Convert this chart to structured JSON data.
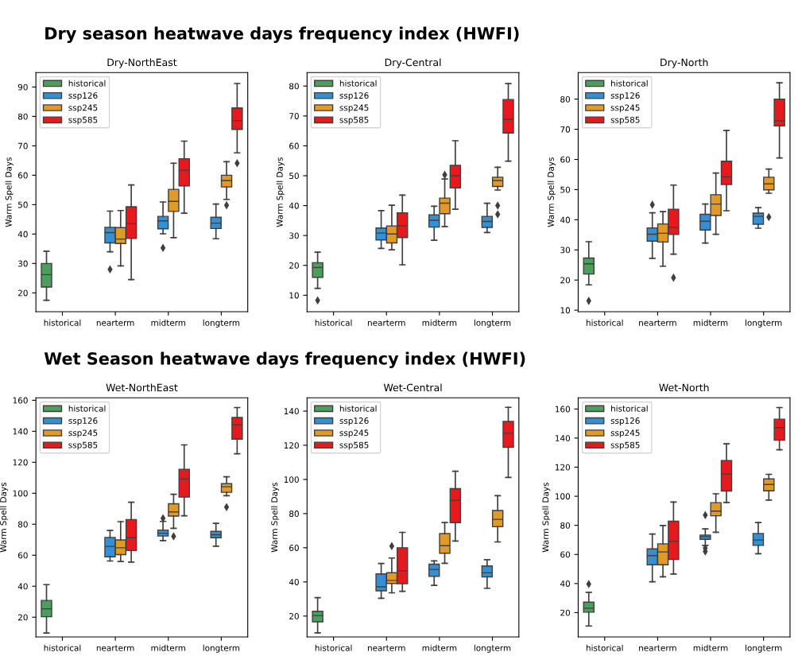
{
  "chart_data": [
    {
      "type": "box",
      "title": "Dry-NorthEast",
      "ylabel": "Warm Spell Days",
      "annotations": [
        "Dry season heatwave days frequency index (HWFI)"
      ],
      "categories": [
        "historical",
        "nearterm",
        "midterm",
        "longterm"
      ],
      "ylim": [
        13.6,
        94.9
      ],
      "yticks": [
        20,
        30,
        40,
        50,
        60,
        70,
        80,
        90
      ],
      "legend": "top left",
      "marker": "diamond",
      "series": [
        {
          "name": "historical",
          "color": "#4c9f5a",
          "boxes": [
            {
              "low": 17.5,
              "q1": 22,
              "median": 26.2,
              "q3": 30,
              "high": 34.2
            },
            null,
            null,
            null
          ]
        },
        {
          "name": "ssp126",
          "color": "#3490d4",
          "boxes": [
            null,
            {
              "low": 34,
              "q1": 37,
              "median": 40.5,
              "q3": 42.3,
              "high": 47.8,
              "outliers": [
                28
              ]
            },
            {
              "low": 40.1,
              "q1": 41.8,
              "median": 44.5,
              "q3": 46,
              "high": 50.9,
              "outliers": [
                35.3
              ]
            },
            {
              "low": 38.4,
              "q1": 41.9,
              "median": 43.7,
              "q3": 45.7,
              "high": 50.2
            }
          ]
        },
        {
          "name": "ssp245",
          "color": "#e09a25",
          "boxes": [
            null,
            {
              "low": 29.2,
              "q1": 36.8,
              "median": 38.3,
              "q3": 42.2,
              "high": 48
            },
            {
              "low": 38.8,
              "q1": 47.7,
              "median": 51.1,
              "q3": 55.2,
              "high": 64.1
            },
            {
              "low": 51.8,
              "q1": 56,
              "median": 58.2,
              "q3": 60,
              "high": 64.6,
              "outliers": [
                49.8
              ]
            }
          ]
        },
        {
          "name": "ssp585",
          "color": "#e8191c",
          "boxes": [
            null,
            {
              "low": 24.5,
              "q1": 38.5,
              "median": 43.5,
              "q3": 49.3,
              "high": 56.7
            },
            {
              "low": 47.1,
              "q1": 56.4,
              "median": 61.7,
              "q3": 65.6,
              "high": 71.6
            },
            {
              "low": 67.6,
              "q1": 75.6,
              "median": 78.6,
              "q3": 82.9,
              "high": 91.2,
              "outliers": [
                64.1
              ]
            }
          ]
        }
      ]
    },
    {
      "type": "box",
      "title": "Dry-Central",
      "ylabel": "Warm Spell Days",
      "categories": [
        "historical",
        "nearterm",
        "midterm",
        "longterm"
      ],
      "ylim": [
        4.5,
        84.5
      ],
      "yticks": [
        10,
        20,
        30,
        40,
        50,
        60,
        70,
        80
      ],
      "legend": "top left",
      "marker": "diamond",
      "series": [
        {
          "name": "historical",
          "color": "#4c9f5a",
          "boxes": [
            {
              "low": 12.3,
              "q1": 16,
              "median": 19.3,
              "q3": 20.9,
              "high": 24.4,
              "outliers": [
                8.3
              ]
            },
            null,
            null,
            null
          ]
        },
        {
          "name": "ssp126",
          "color": "#3490d4",
          "boxes": [
            null,
            {
              "low": 25.7,
              "q1": 28.5,
              "median": 30.8,
              "q3": 32.5,
              "high": 38.3
            },
            {
              "low": 28.4,
              "q1": 32.8,
              "median": 35.1,
              "q3": 36.9,
              "high": 39.8
            },
            {
              "low": 31,
              "q1": 32.7,
              "median": 34.7,
              "q3": 36.4,
              "high": 40.8
            }
          ]
        },
        {
          "name": "ssp245",
          "color": "#e09a25",
          "boxes": [
            null,
            {
              "low": 25.2,
              "q1": 27.5,
              "median": 30.5,
              "q3": 33.2,
              "high": 40.1
            },
            {
              "low": 33,
              "q1": 37.3,
              "median": 40.8,
              "q3": 42.5,
              "high": 48.9,
              "outliers": [
                50.3
              ]
            },
            {
              "low": 45.2,
              "q1": 46.4,
              "median": 48.4,
              "q3": 49.5,
              "high": 52.8,
              "outliers": [
                40,
                37.1
              ]
            }
          ]
        },
        {
          "name": "ssp585",
          "color": "#e8191c",
          "boxes": [
            null,
            {
              "low": 20.2,
              "q1": 29.3,
              "median": 33.3,
              "q3": 37.6,
              "high": 43.5
            },
            {
              "low": 38.8,
              "q1": 45.9,
              "median": 50,
              "q3": 53.5,
              "high": 61.7
            },
            {
              "low": 54.9,
              "q1": 64.3,
              "median": 68.9,
              "q3": 75.5,
              "high": 80.8
            }
          ]
        }
      ]
    },
    {
      "type": "box",
      "title": "Dry-North",
      "ylabel": "Warm Spell Days",
      "categories": [
        "historical",
        "nearterm",
        "midterm",
        "longterm"
      ],
      "ylim": [
        9.5,
        88.8
      ],
      "yticks": [
        10,
        20,
        30,
        40,
        50,
        60,
        70,
        80
      ],
      "legend": "top left",
      "marker": "diamond",
      "series": [
        {
          "name": "historical",
          "color": "#4c9f5a",
          "boxes": [
            {
              "low": 18.4,
              "q1": 22,
              "median": 25.4,
              "q3": 27.3,
              "high": 32.7,
              "outliers": [
                13.1
              ]
            },
            null,
            null,
            null
          ]
        },
        {
          "name": "ssp126",
          "color": "#3490d4",
          "boxes": [
            null,
            {
              "low": 27.2,
              "q1": 32.9,
              "median": 35.2,
              "q3": 37.3,
              "high": 42.3,
              "outliers": [
                45
              ]
            },
            {
              "low": 32.3,
              "q1": 36.6,
              "median": 39.5,
              "q3": 41.8,
              "high": 45.2
            },
            {
              "low": 37.2,
              "q1": 38.5,
              "median": 41.1,
              "q3": 42.2,
              "high": 44
            }
          ]
        },
        {
          "name": "ssp245",
          "color": "#e09a25",
          "boxes": [
            null,
            {
              "low": 24.6,
              "q1": 32.6,
              "median": 35.5,
              "q3": 38.6,
              "high": 42.7
            },
            {
              "low": 35.2,
              "q1": 41.4,
              "median": 45.2,
              "q3": 48.3,
              "high": 55.5
            },
            {
              "low": 48.8,
              "q1": 49.9,
              "median": 51.9,
              "q3": 54.1,
              "high": 56.8,
              "outliers": [
                40.9
              ]
            }
          ]
        },
        {
          "name": "ssp585",
          "color": "#e8191c",
          "boxes": [
            null,
            {
              "low": 28.6,
              "q1": 35.1,
              "median": 37.5,
              "q3": 43.5,
              "high": 51.5,
              "outliers": [
                20.8
              ]
            },
            {
              "low": 43,
              "q1": 51.7,
              "median": 54.2,
              "q3": 59.4,
              "high": 69.6
            },
            {
              "low": 60.5,
              "q1": 71.1,
              "median": 72.8,
              "q3": 80,
              "high": 85.4
            }
          ]
        }
      ]
    },
    {
      "type": "box",
      "title": "Wet-NorthEast",
      "ylabel": "Warm Spell Days",
      "annotations": [
        "Wet Season heatwave days frequency index (HWFI)"
      ],
      "categories": [
        "historical",
        "nearterm",
        "midterm",
        "longterm"
      ],
      "ylim": [
        7.3,
        161.6
      ],
      "yticks": [
        20,
        40,
        60,
        80,
        100,
        120,
        140,
        160
      ],
      "legend": "top left",
      "marker": "diamond",
      "series": [
        {
          "name": "historical",
          "color": "#4c9f5a",
          "boxes": [
            {
              "low": 9.8,
              "q1": 20.3,
              "median": 25.4,
              "q3": 30.8,
              "high": 41
            },
            null,
            null,
            null
          ]
        },
        {
          "name": "ssp126",
          "color": "#3490d4",
          "boxes": [
            null,
            {
              "low": 56.3,
              "q1": 59,
              "median": 65.7,
              "q3": 71.5,
              "high": 76
            },
            {
              "low": 69.4,
              "q1": 72.4,
              "median": 74.2,
              "q3": 76.2,
              "high": 81.8,
              "outliers": [
                83.9
              ]
            },
            {
              "low": 65.8,
              "q1": 71.3,
              "median": 73.2,
              "q3": 75.4,
              "high": 80.6
            }
          ]
        },
        {
          "name": "ssp245",
          "color": "#e09a25",
          "boxes": [
            null,
            {
              "low": 56,
              "q1": 60.4,
              "median": 64.8,
              "q3": 69.9,
              "high": 81.7
            },
            {
              "low": 77.4,
              "q1": 85.3,
              "median": 88,
              "q3": 93.2,
              "high": 99.3,
              "outliers": [
                72.2
              ]
            },
            {
              "low": 98.4,
              "q1": 100.6,
              "median": 104.2,
              "q3": 106.2,
              "high": 110.6,
              "outliers": [
                91
              ]
            }
          ]
        },
        {
          "name": "ssp585",
          "color": "#e8191c",
          "boxes": [
            null,
            {
              "low": 55.6,
              "q1": 63,
              "median": 71.3,
              "q3": 83,
              "high": 94.2
            },
            {
              "low": 85.5,
              "q1": 97.5,
              "median": 109.2,
              "q3": 115.5,
              "high": 131.2
            },
            {
              "low": 125.5,
              "q1": 134.9,
              "median": 144.1,
              "q3": 148.9,
              "high": 155.3
            }
          ]
        }
      ]
    },
    {
      "type": "box",
      "title": "Wet-Central",
      "ylabel": "Warm Spell Days",
      "categories": [
        "historical",
        "nearterm",
        "midterm",
        "longterm"
      ],
      "ylim": [
        7.8,
        147.8
      ],
      "yticks": [
        20,
        40,
        60,
        80,
        100,
        120,
        140
      ],
      "legend": "top left",
      "marker": "diamond",
      "series": [
        {
          "name": "historical",
          "color": "#4c9f5a",
          "boxes": [
            {
              "low": 10.2,
              "q1": 16.6,
              "median": 20.3,
              "q3": 22.8,
              "high": 30.8
            },
            null,
            null,
            null
          ]
        },
        {
          "name": "ssp126",
          "color": "#3490d4",
          "boxes": [
            null,
            {
              "low": 30.4,
              "q1": 34.8,
              "median": 37.1,
              "q3": 44.7,
              "high": 50.8
            },
            {
              "low": 38,
              "q1": 43.2,
              "median": 47.3,
              "q3": 50.4,
              "high": 52.3
            },
            {
              "low": 36.3,
              "q1": 42.9,
              "median": 45.3,
              "q3": 49.3,
              "high": 53
            }
          ]
        },
        {
          "name": "ssp245",
          "color": "#e09a25",
          "boxes": [
            null,
            {
              "low": 33.6,
              "q1": 39.1,
              "median": 40.9,
              "q3": 45.4,
              "high": 54,
              "outliers": [
                61
              ]
            },
            {
              "low": 50.9,
              "q1": 56.8,
              "median": 61.2,
              "q3": 68.3,
              "high": 74.8
            },
            {
              "low": 63.4,
              "q1": 72.3,
              "median": 76.6,
              "q3": 81.8,
              "high": 90.5
            }
          ]
        },
        {
          "name": "ssp585",
          "color": "#e8191c",
          "boxes": [
            null,
            {
              "low": 34.5,
              "q1": 38.9,
              "median": 46.5,
              "q3": 60,
              "high": 69
            },
            {
              "low": 63.9,
              "q1": 74.7,
              "median": 87.8,
              "q3": 94.6,
              "high": 104.8
            },
            {
              "low": 101.2,
              "q1": 118.8,
              "median": 127,
              "q3": 134,
              "high": 142.2
            }
          ]
        }
      ]
    },
    {
      "type": "box",
      "title": "Wet-North",
      "ylabel": "Warm Spell Days",
      "categories": [
        "historical",
        "nearterm",
        "midterm",
        "longterm"
      ],
      "ylim": [
        3.3,
        167.7
      ],
      "yticks": [
        20,
        40,
        60,
        80,
        100,
        120,
        140,
        160
      ],
      "legend": "top left",
      "marker": "diamond",
      "series": [
        {
          "name": "historical",
          "color": "#4c9f5a",
          "boxes": [
            {
              "low": 10.8,
              "q1": 20.3,
              "median": 23,
              "q3": 27.2,
              "high": 34,
              "outliers": [
                39.6
              ]
            },
            null,
            null,
            null
          ]
        },
        {
          "name": "ssp126",
          "color": "#3490d4",
          "boxes": [
            null,
            {
              "low": 41.2,
              "q1": 52.9,
              "median": 59.2,
              "q3": 63.8,
              "high": 74
            },
            {
              "low": 66.2,
              "q1": 70.4,
              "median": 72.2,
              "q3": 73.3,
              "high": 77.6,
              "outliers": [
                87.1,
                64.4,
                62
              ]
            },
            {
              "low": 60.5,
              "q1": 66.2,
              "median": 69.9,
              "q3": 74.4,
              "high": 81.9
            }
          ]
        },
        {
          "name": "ssp245",
          "color": "#e09a25",
          "boxes": [
            null,
            {
              "low": 44.6,
              "q1": 52.9,
              "median": 61.7,
              "q3": 67.3,
              "high": 79.9
            },
            {
              "low": 75.2,
              "q1": 86.6,
              "median": 89.8,
              "q3": 95.6,
              "high": 101.7
            },
            {
              "low": 97.4,
              "q1": 103.7,
              "median": 108.1,
              "q3": 111.9,
              "high": 115.1
            }
          ]
        },
        {
          "name": "ssp585",
          "color": "#e8191c",
          "boxes": [
            null,
            {
              "low": 46.5,
              "q1": 56.5,
              "median": 69.1,
              "q3": 82.8,
              "high": 96
            },
            {
              "low": 95.7,
              "q1": 103.6,
              "median": 115.3,
              "q3": 124.6,
              "high": 136.1
            },
            {
              "low": 132,
              "q1": 138.5,
              "median": 147.2,
              "q3": 153,
              "high": 161
            }
          ]
        }
      ]
    }
  ]
}
